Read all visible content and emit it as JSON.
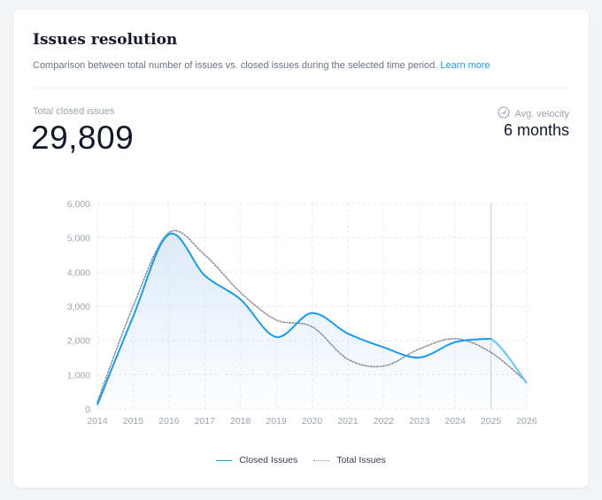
{
  "card": {
    "title": "Issues resolution",
    "description": "Comparison between total number of issues vs. closed issues during the selected time period.",
    "learn_more": "Learn more"
  },
  "stats": {
    "closed_label": "Total closed issues",
    "closed_value": "29,809",
    "velocity_label": "Avg. velocity",
    "velocity_icon": "gauge-icon",
    "velocity_value": "6 months"
  },
  "colors": {
    "closed": "#1a9be8",
    "closed_forecast": "#67c3f5",
    "total": "#8b8f99",
    "area_top": "#d7e6f4",
    "grid": "#e5e7eb",
    "axis_text": "#9ca3af"
  },
  "chart_data": {
    "type": "line",
    "x": [
      2014,
      2015,
      2016,
      2017,
      2018,
      2019,
      2020,
      2021,
      2022,
      2023,
      2024,
      2025,
      2026
    ],
    "y_ticks": [
      "0",
      "1,000",
      "2,000",
      "3,000",
      "4,000",
      "5,000",
      "6,000"
    ],
    "x_ticks": [
      "2014",
      "2015",
      "2016",
      "2017",
      "2018",
      "2019",
      "2020",
      "2021",
      "2022",
      "2023",
      "2024",
      "2025",
      "2026"
    ],
    "ylim": [
      0,
      6000
    ],
    "xlim": [
      2014,
      2026
    ],
    "grid": true,
    "legend_position": "bottom-center",
    "current_x": 2025,
    "series": [
      {
        "name": "Closed Issues",
        "style": "solid",
        "points": [
          [
            2014,
            120
          ],
          [
            2015,
            2700
          ],
          [
            2016,
            5100
          ],
          [
            2017,
            3900
          ],
          [
            2018,
            3200
          ],
          [
            2019,
            2100
          ],
          [
            2020,
            2800
          ],
          [
            2021,
            2200
          ],
          [
            2022,
            1800
          ],
          [
            2023,
            1500
          ],
          [
            2024,
            1950
          ],
          [
            2025,
            2050
          ],
          [
            2026,
            750
          ]
        ]
      },
      {
        "name": "Total Issues",
        "style": "dotted",
        "points": [
          [
            2014,
            200
          ],
          [
            2015,
            3000
          ],
          [
            2016,
            5150
          ],
          [
            2017,
            4500
          ],
          [
            2018,
            3400
          ],
          [
            2019,
            2600
          ],
          [
            2020,
            2400
          ],
          [
            2021,
            1450
          ],
          [
            2022,
            1250
          ],
          [
            2023,
            1750
          ],
          [
            2024,
            2050
          ],
          [
            2025,
            1650
          ],
          [
            2026,
            780
          ]
        ]
      }
    ]
  }
}
